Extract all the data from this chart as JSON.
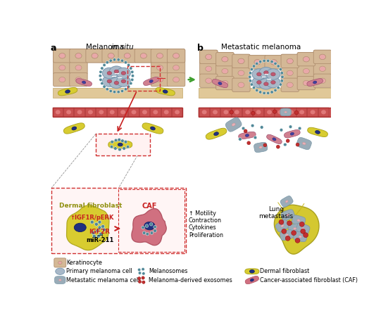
{
  "title_a": "Melanoma ",
  "title_a_italic": "in situ",
  "title_b": "Metastatic melanoma",
  "label_a": "a",
  "label_b": "b",
  "colors": {
    "keratinocyte_fill": "#d4b896",
    "keratinocyte_stroke": "#b09070",
    "keratinocyte_nucleus": "#e8a8a8",
    "melanoma_primary_fill": "#a8b8c8",
    "melanoma_primary_stroke": "#7898b0",
    "melanoma_nucleus": "#c05870",
    "melanoma_metastatic_fill": "#d08090",
    "melanoma_metastatic_stroke": "#a05070",
    "melanoma_meta_nucleus": "#4040a0",
    "melanosome_color": "#508898",
    "exosome_color": "#c03030",
    "dermal_fibroblast_fill": "#d8cc30",
    "dermal_fibroblast_stroke": "#b0a820",
    "dermal_fibroblast_nucleus": "#203080",
    "caf_fill": "#d07080",
    "caf_stroke": "#b05060",
    "caf_nucleus": "#203080",
    "blood_vessel_fill": "#c85050",
    "blood_vessel_inner": "#d06060",
    "blood_vessel_border": "#b03030",
    "skin_tan": "#e0c898",
    "skin_border": "#c8b078",
    "meta_gray_fill": "#9aacb8",
    "meta_gray_stroke": "#7898a8",
    "green_arrow": "#40a030",
    "red_arrow": "#c82020",
    "red_dashed": "#d03030",
    "dashed_line": "#909090",
    "background": "#ffffff",
    "lung_fill": "#d4c830",
    "lung_stroke": "#a8a020",
    "lung_inner": "#c8b820"
  }
}
